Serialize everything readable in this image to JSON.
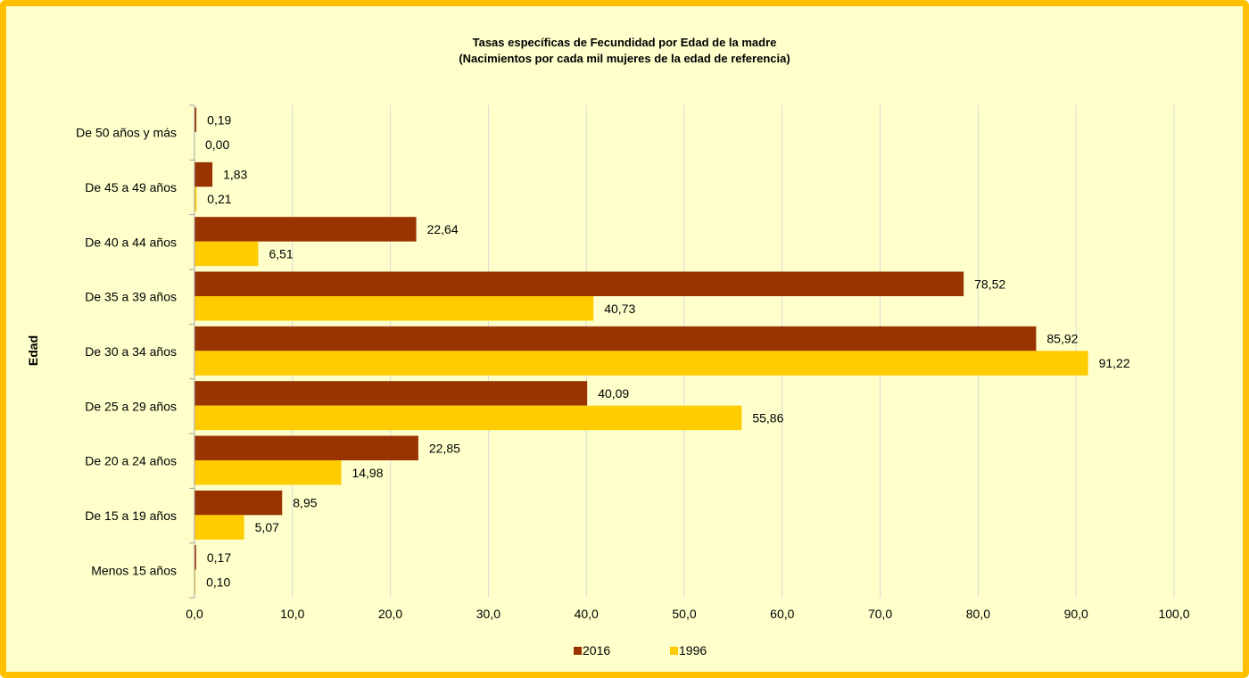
{
  "chart_data": {
    "type": "bar",
    "orientation": "horizontal",
    "title": "Tasas específicas de Fecundidad por Edad de la madre",
    "subtitle": "(Nacimientos por cada mil mujeres de la edad de referencia)",
    "xlabel": "",
    "ylabel": "Edad",
    "xlim": [
      0,
      100
    ],
    "x_ticks": [
      "0,0",
      "10,0",
      "20,0",
      "30,0",
      "40,0",
      "50,0",
      "60,0",
      "70,0",
      "80,0",
      "90,0",
      "100,0"
    ],
    "grid": "vertical",
    "legend_position": "bottom",
    "categories": [
      "De 50 años y más",
      "De 45 a 49 años",
      "De 40 a 44 años",
      "De 35 a 39 años",
      "De 30 a 34 años",
      "De 25 a 29 años",
      "De 20 a 24 años",
      "De 15 a 19 años",
      "Menos 15 años"
    ],
    "series": [
      {
        "name": "2016",
        "color": "#993300",
        "values": [
          0.19,
          1.83,
          22.64,
          78.52,
          85.92,
          40.09,
          22.85,
          8.95,
          0.17
        ],
        "labels": [
          "0,19",
          "1,83",
          "22,64",
          "78,52",
          "85,92",
          "40,09",
          "22,85",
          "8,95",
          "0,17"
        ]
      },
      {
        "name": "1996",
        "color": "#FFCC00",
        "values": [
          0.0,
          0.21,
          6.51,
          40.73,
          91.22,
          55.86,
          14.98,
          5.07,
          0.1
        ],
        "labels": [
          "0,00",
          "0,21",
          "6,51",
          "40,73",
          "91,22",
          "55,86",
          "14,98",
          "5,07",
          "0,10"
        ]
      }
    ]
  }
}
